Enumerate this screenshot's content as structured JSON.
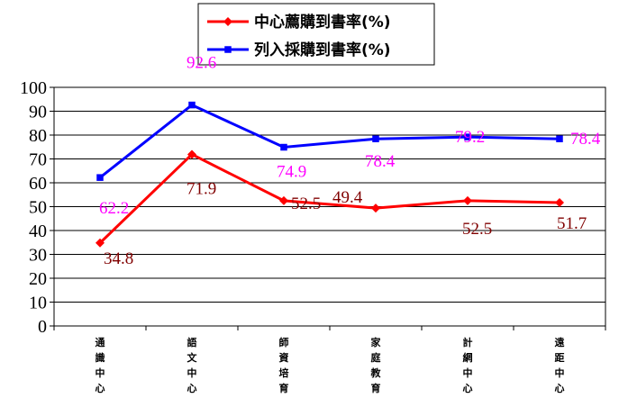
{
  "chart_data": {
    "type": "line",
    "categories": [
      "通識中心",
      "語文中心",
      "師資培育",
      "家庭教育",
      "計網中心",
      "遠距中心"
    ],
    "series": [
      {
        "name": "中心薦購到書率(%)",
        "values": [
          34.8,
          71.9,
          52.5,
          49.4,
          52.5,
          51.7
        ],
        "color": "#ff0000",
        "label_color": "#800000",
        "marker": "diamond"
      },
      {
        "name": "列入採購到書率(%)",
        "values": [
          62.2,
          92.6,
          74.9,
          78.4,
          79.2,
          78.4
        ],
        "color": "#0000ff",
        "label_color": "#ff00ff",
        "marker": "square"
      }
    ],
    "ylim": [
      0,
      100
    ],
    "ytick_step": 10,
    "grid": true,
    "legend_position": "top"
  }
}
